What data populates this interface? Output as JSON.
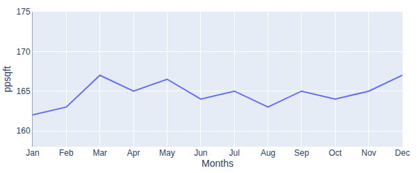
{
  "chart_data": {
    "type": "line",
    "x_label": "Months",
    "y_label": "ppsqft",
    "categories": [
      "Jan",
      "Feb",
      "Mar",
      "Apr",
      "May",
      "Jun",
      "Jul",
      "Aug",
      "Sep",
      "Oct",
      "Nov",
      "Dec"
    ],
    "values": [
      162,
      163,
      167,
      165,
      166.5,
      164,
      165,
      163,
      165,
      164,
      165,
      167
    ],
    "color": "#636efa",
    "ylim": [
      158,
      175
    ],
    "yticks": [
      160,
      165,
      170,
      175
    ],
    "grid": true
  }
}
